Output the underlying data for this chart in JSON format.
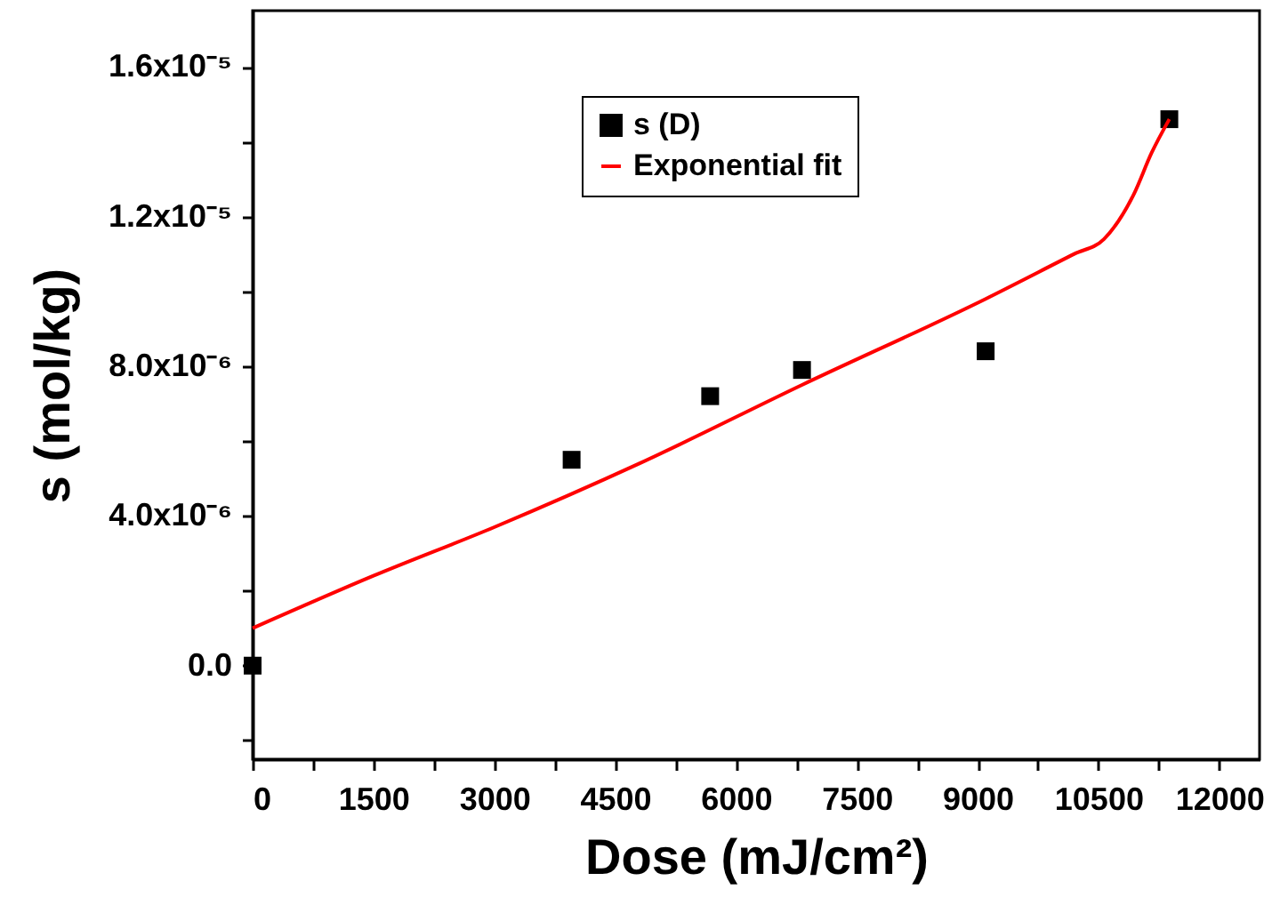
{
  "chart_data": {
    "type": "scatter",
    "xlabel": "Dose (mJ/cm²)",
    "ylabel": "s (mol/kg)",
    "xlim": [
      0,
      12500
    ],
    "xticks": [
      0,
      {
        "value": 750,
        "label": null
      },
      1500,
      {
        "value": 2250,
        "label": null
      },
      3000,
      {
        "value": 3750,
        "label": null
      },
      4500,
      {
        "value": 5250,
        "label": null
      },
      6000,
      {
        "value": 6750,
        "label": null
      },
      7500,
      {
        "value": 8250,
        "label": null
      },
      9000,
      {
        "value": 9750,
        "label": null
      },
      10500,
      {
        "value": 11250,
        "label": null
      },
      12000
    ],
    "ylim": [
      -2.5e-06,
      1.75e-05
    ],
    "yticks": [
      {
        "value": -2e-06,
        "label": null
      },
      {
        "value": 0,
        "label": "0.0"
      },
      {
        "value": 2e-06,
        "label": null
      },
      {
        "value": 4e-06,
        "label": "4.0x10⁻⁶"
      },
      {
        "value": 6e-06,
        "label": null
      },
      {
        "value": 8e-06,
        "label": "8.0x10⁻⁶"
      },
      {
        "value": 1e-05,
        "label": null
      },
      {
        "value": 1.2e-05,
        "label": "1.2x10⁻⁵"
      },
      {
        "value": 1.4e-05,
        "label": null
      },
      {
        "value": 1.6e-05,
        "label": "1.6x10⁻⁵"
      }
    ],
    "grid": false,
    "legend": "top",
    "line_style": "solid",
    "series": [
      {
        "name": "s (D)",
        "marker": "square",
        "color": "#000000",
        "x": [
          0,
          3960,
          5680,
          6820,
          9100,
          11380
        ],
        "values": [
          0,
          5.5e-06,
          7.2e-06,
          7.9e-06,
          8.4e-06,
          1.46e-05
        ]
      },
      {
        "name": "Exponential fit",
        "type": "line",
        "marker": "none",
        "color": "#ff0000",
        "x": [
          0,
          1500,
          3000,
          4800,
          6820,
          9100,
          10200,
          10570,
          10940,
          11160,
          11380
        ],
        "values": [
          1e-06,
          2.4e-06,
          3.7e-06,
          5.4e-06,
          7.5e-06,
          9.8e-06,
          1.1e-05,
          1.14e-05,
          1.26e-05,
          1.37e-05,
          1.46e-05
        ]
      }
    ]
  }
}
